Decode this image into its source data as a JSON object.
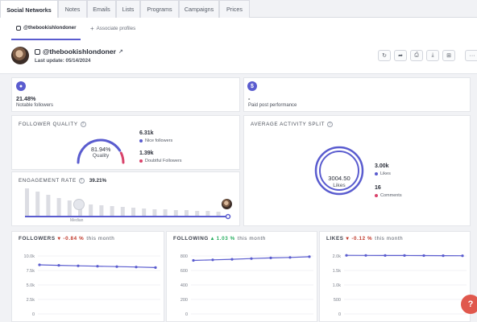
{
  "tabs": [
    {
      "label": "Social Networks",
      "active": true
    },
    {
      "label": "Notes"
    },
    {
      "label": "Emails"
    },
    {
      "label": "Lists"
    },
    {
      "label": "Programs"
    },
    {
      "label": "Campaigns"
    },
    {
      "label": "Prices"
    }
  ],
  "subnav": {
    "active_profile": "@thebookishlondoner",
    "associate": "Associate profiles"
  },
  "profile": {
    "handle": "@thebookishlondoner",
    "last_update": "Last update: 05/14/2024"
  },
  "notable": {
    "value": "21.48%",
    "label": "Notable followers"
  },
  "paid": {
    "value": "-",
    "label": "Paid post performance"
  },
  "follower_quality": {
    "title": "FOLLOWER QUALITY",
    "gauge_value": "81.94%",
    "gauge_label": "Quality",
    "quality_percent": 81.94,
    "nice_value": "6.31k",
    "nice_label": "Nice followers",
    "doubtful_value": "1.39k",
    "doubtful_label": "Doubtful Followers"
  },
  "engagement": {
    "title": "ENGAGEMENT RATE",
    "value": "39.21%",
    "median_label": "Median",
    "bar_heights": [
      34,
      30,
      26,
      22,
      19,
      16,
      14,
      13,
      12,
      11,
      10,
      9,
      8,
      8,
      7,
      7,
      6,
      6,
      5
    ]
  },
  "activity": {
    "title": "AVERAGE ACTIVITY SPLIT",
    "center_value": "3004.50",
    "center_label": "Likes",
    "likes_value": "3.00k",
    "likes_label": "Likes",
    "comments_value": "16",
    "comments_label": "Comments"
  },
  "followers": {
    "name": "FOLLOWERS",
    "change": "-0.84 %",
    "suffix": "this month",
    "yticks": [
      "10.0k",
      "7.5k",
      "5.0k",
      "2.5k",
      "0"
    ]
  },
  "following": {
    "name": "FOLLOWING",
    "change": "1.03 %",
    "suffix": "this month",
    "yticks": [
      "800",
      "600",
      "400",
      "200",
      "0"
    ]
  },
  "likes": {
    "name": "LIKES",
    "change": "-0.12 %",
    "suffix": "this month",
    "yticks": [
      "2.0k",
      "1.5k",
      "1.0k",
      "500",
      "0"
    ]
  },
  "colors": {
    "accent": "#5a5ccf",
    "pink": "#d9436b",
    "neg": "#c0392b",
    "pos": "#27ae60"
  }
}
